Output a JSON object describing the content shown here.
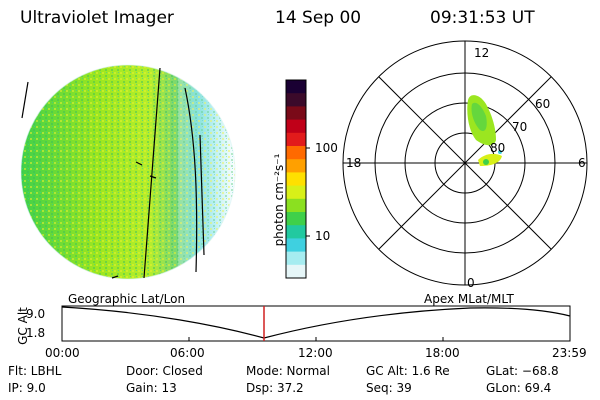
{
  "header": {
    "title": "Ultraviolet Imager",
    "date": "14 Sep 00",
    "time": "09:31:53 UT"
  },
  "colorbar": {
    "label": "photon cm⁻²s⁻¹",
    "ticks": [
      "100",
      "10"
    ],
    "scale": "log",
    "colors": [
      "#1a0033",
      "#3b0a2a",
      "#7a0a18",
      "#c00018",
      "#e21b1b",
      "#ff6a00",
      "#ffa000",
      "#ffe000",
      "#d8f018",
      "#8be020",
      "#3fd04a",
      "#22c9a0",
      "#3fd0e0",
      "#a6ecf0",
      "#e6f6f8"
    ]
  },
  "panels": {
    "geographic_label": "Geographic Lat/Lon",
    "apex_label": "Apex MLat/MLT"
  },
  "polar_plot": {
    "mlt_labels": {
      "top": "12",
      "bottom": "0",
      "left": "18",
      "right": "6"
    },
    "mlat_labels": [
      "60",
      "70",
      "80"
    ]
  },
  "timeline": {
    "axis_label": "GC Alt",
    "y_ticks": [
      "9.0",
      "1.8"
    ],
    "x_ticks": [
      "00:00",
      "06:00",
      "12:00",
      "18:00",
      "23:59"
    ],
    "marker_color": "#d02020"
  },
  "info": {
    "flt": "Flt: LBHL",
    "ip": "IP:  9.0",
    "door": "Door: Closed",
    "gain": "Gain: 13",
    "mode": "Mode: Normal",
    "dsp": "Dsp:    37.2",
    "gcalt": "GC Alt: 1.6 Re",
    "seq": "Seq: 39",
    "glat": "GLat:  −68.8",
    "glon": "GLon:  69.4"
  }
}
